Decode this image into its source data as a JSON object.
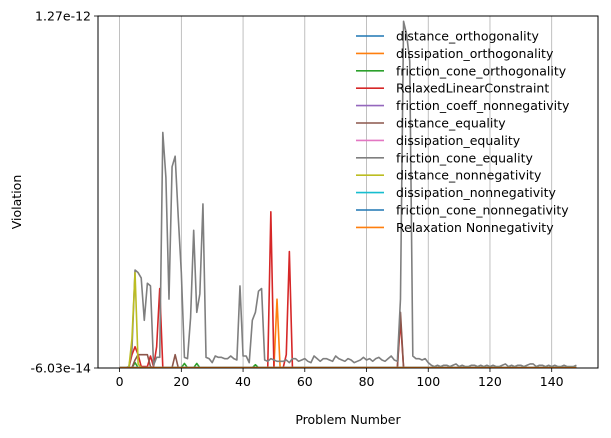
{
  "chart_data": {
    "type": "line",
    "xlabel": "Problem Number",
    "ylabel": "Violation",
    "xlim": [
      -7,
      155
    ],
    "ylim": [
      -6.03e-14,
      1.27e-12
    ],
    "x_ticks": [
      0,
      20,
      40,
      60,
      80,
      100,
      120,
      140
    ],
    "y_tick_labels": [
      "-6.03e-14",
      "1.27e-12"
    ],
    "grid": "vertical",
    "legend_position": "top-right",
    "x": [
      0,
      1,
      2,
      3,
      4,
      5,
      6,
      7,
      8,
      9,
      10,
      11,
      12,
      13,
      14,
      15,
      16,
      17,
      18,
      19,
      20,
      21,
      22,
      23,
      24,
      25,
      26,
      27,
      28,
      29,
      30,
      31,
      32,
      33,
      34,
      35,
      36,
      37,
      38,
      39,
      40,
      41,
      42,
      43,
      44,
      45,
      46,
      47,
      48,
      49,
      50,
      51,
      52,
      53,
      54,
      55,
      56,
      57,
      58,
      59,
      60,
      61,
      62,
      63,
      64,
      65,
      66,
      67,
      68,
      69,
      70,
      71,
      72,
      73,
      74,
      75,
      76,
      77,
      78,
      79,
      80,
      81,
      82,
      83,
      84,
      85,
      86,
      87,
      88,
      89,
      90,
      91,
      92,
      93,
      94,
      95,
      96,
      97,
      98,
      99,
      100,
      101,
      102,
      103,
      104,
      105,
      106,
      107,
      108,
      109,
      110,
      111,
      112,
      113,
      114,
      115,
      116,
      117,
      118,
      119,
      120,
      121,
      122,
      123,
      124,
      125,
      126,
      127,
      128,
      129,
      130,
      131,
      132,
      133,
      134,
      135,
      136,
      137,
      138,
      139,
      140,
      141,
      142,
      143,
      144,
      145,
      146,
      147,
      148
    ],
    "series": [
      {
        "name": "distance_orthogonality",
        "color": "#1f77b4",
        "sparse": [],
        "baseline": -5.9e-14
      },
      {
        "name": "dissipation_orthogonality",
        "color": "#ff7f0e",
        "sparse": [
          [
            50,
            -5.9e-14
          ],
          [
            51,
            2e-13
          ],
          [
            52,
            -5.9e-14
          ]
        ],
        "baseline": -5.9e-14
      },
      {
        "name": "friction_cone_orthogonality",
        "color": "#2ca02c",
        "sparse": [
          [
            5,
            -4e-14
          ],
          [
            6,
            -5.9e-14
          ],
          [
            20,
            -5.9e-14
          ],
          [
            21,
            -4.3e-14
          ],
          [
            22,
            -5.9e-14
          ],
          [
            24,
            -5.9e-14
          ],
          [
            25,
            -4.3e-14
          ],
          [
            26,
            -5.9e-14
          ],
          [
            43,
            -5.9e-14
          ],
          [
            44,
            -4.8e-14
          ],
          [
            45,
            -5.9e-14
          ]
        ],
        "baseline": -5.9e-14
      },
      {
        "name": "RelaxedLinearConstraint",
        "color": "#d62728",
        "sparse": [
          [
            3,
            -5.9e-14
          ],
          [
            4,
            -1e-14
          ],
          [
            5,
            2e-14
          ],
          [
            6,
            -1e-14
          ],
          [
            7,
            -5.5e-14
          ],
          [
            8,
            -5.5e-14
          ],
          [
            9,
            -5.5e-14
          ],
          [
            10,
            -1.5e-14
          ],
          [
            11,
            -5.5e-14
          ],
          [
            12,
            2e-14
          ],
          [
            13,
            2.4e-13
          ],
          [
            14,
            -5.9e-14
          ],
          [
            48,
            -5.9e-14
          ],
          [
            49,
            5.3e-13
          ],
          [
            50,
            -5.9e-14
          ],
          [
            53,
            -5.9e-14
          ],
          [
            54,
            -1e-14
          ],
          [
            55,
            3.8e-13
          ],
          [
            56,
            -5.9e-14
          ],
          [
            90,
            -5.9e-14
          ],
          [
            91,
            1.2e-13
          ],
          [
            92,
            -5.9e-14
          ]
        ],
        "baseline": -5.9e-14
      },
      {
        "name": "friction_coeff_nonnegativity",
        "color": "#9467bd",
        "sparse": [],
        "baseline": -5.9e-14
      },
      {
        "name": "distance_equality",
        "color": "#8c564b",
        "sparse": [
          [
            4,
            -5.9e-14
          ],
          [
            5,
            -3e-14
          ],
          [
            6,
            -1e-14
          ],
          [
            7,
            -1e-14
          ],
          [
            8,
            -1e-14
          ],
          [
            9,
            -1e-14
          ],
          [
            10,
            -5.5e-14
          ],
          [
            11,
            -5.9e-14
          ],
          [
            17,
            -5.9e-14
          ],
          [
            18,
            -1e-14
          ],
          [
            19,
            -5.9e-14
          ],
          [
            90,
            -5.9e-14
          ],
          [
            91,
            1.5e-13
          ],
          [
            92,
            -5.9e-14
          ]
        ],
        "baseline": -5.9e-14
      },
      {
        "name": "dissipation_equality",
        "color": "#e377c2",
        "sparse": [],
        "baseline": -5.9e-14
      },
      {
        "name": "friction_cone_equality",
        "color": "#7f7f7f",
        "values": [
          -5.9e-14,
          -5.9e-14,
          -5.9e-14,
          -5.5e-14,
          1e-14,
          3.1e-13,
          3e-13,
          2.8e-13,
          1.2e-13,
          2.6e-13,
          2.5e-13,
          -5e-14,
          -2e-14,
          -2e-14,
          8.3e-13,
          6.6e-13,
          2e-13,
          7e-13,
          7.4e-13,
          5.1e-13,
          3e-13,
          -2e-14,
          -2.5e-14,
          1.3e-13,
          4.6e-13,
          1.5e-13,
          2.2e-13,
          5.6e-13,
          -2e-14,
          -2.5e-14,
          -4e-14,
          -1.5e-14,
          -2e-14,
          -2e-14,
          -2.5e-14,
          -2.5e-14,
          -1.5e-14,
          -2.5e-14,
          -3e-14,
          2.5e-13,
          -1.5e-14,
          -1.5e-14,
          -4e-14,
          1.2e-13,
          1.5e-13,
          2.3e-13,
          2.4e-13,
          -3e-14,
          -3.5e-14,
          -2.5e-14,
          -3e-14,
          -3.5e-14,
          -3.5e-14,
          -3.5e-14,
          -3e-14,
          -4e-14,
          -2.5e-14,
          -2.5e-14,
          -3.5e-14,
          -3e-14,
          -2.5e-14,
          -3.5e-14,
          -4e-14,
          -1.5e-14,
          -2.5e-14,
          -3.5e-14,
          -2.5e-14,
          -2.5e-14,
          -3e-14,
          -3.5e-14,
          -1.5e-14,
          -2.5e-14,
          -3e-14,
          -3.5e-14,
          -2.5e-14,
          -3e-14,
          -4e-14,
          -3.5e-14,
          -3e-14,
          -2e-14,
          -3e-14,
          -2.5e-14,
          -3.5e-14,
          -2.5e-14,
          -2e-14,
          -3e-14,
          -3.5e-14,
          -2.5e-14,
          -1.5e-14,
          -3e-14,
          -3.5e-14,
          2e-13,
          1.25e-12,
          1.2e-12,
          1.1e-12,
          -1.5e-14,
          -2.5e-14,
          -2.5e-14,
          -3e-14,
          -2.5e-14,
          -4e-14,
          -5e-14,
          -5.5e-14,
          -5e-14,
          -5.5e-14,
          -5e-14,
          -5e-14,
          -5.5e-14,
          -5e-14,
          -4.5e-14,
          -5.5e-14,
          -5e-14,
          -5.5e-14,
          -5.5e-14,
          -5e-14,
          -5e-14,
          -5.5e-14,
          -5e-14,
          -5.5e-14,
          -5e-14,
          -5.5e-14,
          -5e-14,
          -5.5e-14,
          -5.5e-14,
          -5e-14,
          -4.5e-14,
          -5.5e-14,
          -5e-14,
          -5.5e-14,
          -5e-14,
          -5e-14,
          -5.5e-14,
          -5e-14,
          -4.5e-14,
          -4.5e-14,
          -5.5e-14,
          -5e-14,
          -5e-14,
          -5.5e-14,
          -5e-14,
          -5.5e-14,
          -5e-14,
          -5.5e-14,
          -5.5e-14,
          -5e-14,
          -5.5e-14,
          -5.5e-14,
          -5.5e-14,
          -5e-14
        ]
      },
      {
        "name": "distance_nonnegativity",
        "color": "#bcbd22",
        "sparse": [
          [
            3,
            -5.9e-14
          ],
          [
            4,
            5e-14
          ],
          [
            5,
            3e-13
          ],
          [
            6,
            -4.5e-14
          ],
          [
            7,
            -5.9e-14
          ]
        ],
        "baseline": -5.9e-14
      },
      {
        "name": "dissipation_nonnegativity",
        "color": "#17becf",
        "sparse": [],
        "baseline": -5.9e-14
      },
      {
        "name": "friction_cone_nonnegativity",
        "color": "#1f77b4",
        "sparse": [],
        "baseline": -5.9e-14
      },
      {
        "name": "Relaxation Nonnegativity",
        "color": "#ff7f0e",
        "sparse": [],
        "baseline": -5.9e-14
      }
    ]
  }
}
